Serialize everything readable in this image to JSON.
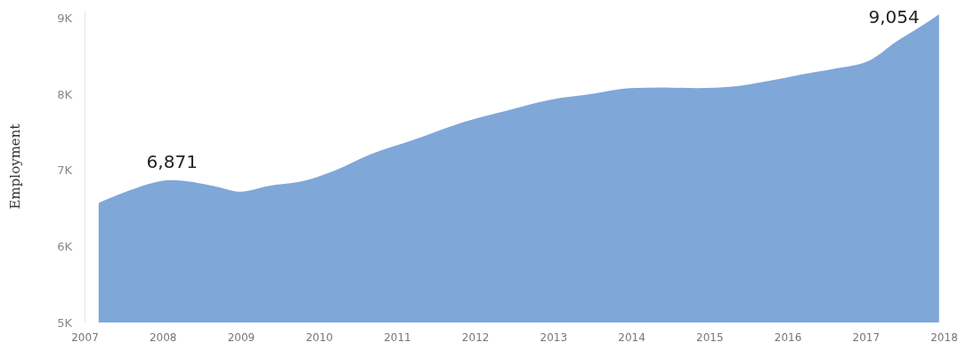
{
  "chart_data": {
    "type": "area",
    "ylabel": "Employment",
    "x": [
      2007.18,
      2007.51,
      2008.12,
      2008.67,
      2009,
      2009.33,
      2009.88,
      2010.21,
      2010.66,
      2011.21,
      2011.87,
      2012.42,
      2012.97,
      2013.53,
      2013.97,
      2014.41,
      2014.85,
      2015.29,
      2015.73,
      2016.17,
      2016.62,
      2017.06,
      2017.39,
      2017.72,
      2017.94
    ],
    "series": [
      {
        "color": "#7fa7d8",
        "values": [
          6570,
          6710,
          6871,
          6790,
          6720,
          6790,
          6880,
          7000,
          7210,
          7400,
          7640,
          7790,
          7930,
          8010,
          8080,
          8090,
          8080,
          8100,
          8170,
          8260,
          8340,
          8450,
          8690,
          8900,
          9054
        ]
      }
    ],
    "xlim": [
      2007,
      2018
    ],
    "xticks": [
      2007,
      2008,
      2009,
      2010,
      2011,
      2012,
      2013,
      2014,
      2015,
      2016,
      2017,
      2018
    ],
    "ylim": [
      5000,
      9100
    ],
    "yticks": [
      {
        "value": 5000,
        "label": "5K"
      },
      {
        "value": 6000,
        "label": "6K"
      },
      {
        "value": 7000,
        "label": "7K"
      },
      {
        "value": 8000,
        "label": "8K"
      },
      {
        "value": 9000,
        "label": "9K"
      }
    ],
    "annotations": [
      {
        "text": "6,871",
        "x": 2008.12,
        "y": 6871
      },
      {
        "text": "9,054",
        "x": 2017.94,
        "y": 9054
      }
    ]
  }
}
